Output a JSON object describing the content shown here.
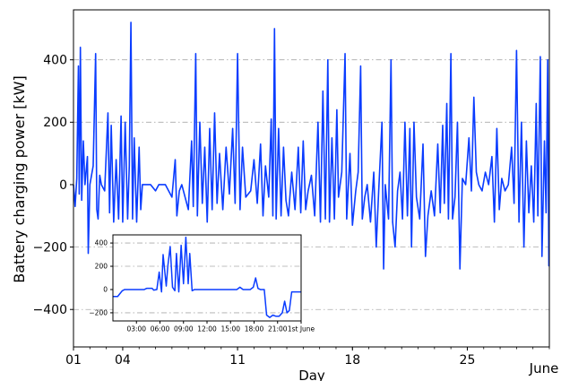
{
  "chart_data": [
    {
      "type": "line",
      "role": "main",
      "title": "",
      "xlabel": "Day",
      "ylabel": "Battery charging power [kW]",
      "xlim": [
        1,
        30
      ],
      "ylim": [
        -520,
        560
      ],
      "x_ticks": [
        {
          "x": 1,
          "label": "01"
        },
        {
          "x": 4,
          "label": "04"
        },
        {
          "x": 11,
          "label": "11"
        },
        {
          "x": 18,
          "label": "18"
        },
        {
          "x": 25,
          "label": "25"
        }
      ],
      "x_tick_label_right": "June",
      "y_ticks": [
        -400,
        -200,
        0,
        200,
        400
      ],
      "y_tick_labels": [
        "−400",
        "−200",
        "0",
        "200",
        "400"
      ],
      "grid": "horizontal dash-dot",
      "series": [
        {
          "color": "#0a3cff",
          "points": [
            [
              1.0,
              0
            ],
            [
              1.1,
              -70
            ],
            [
              1.2,
              20
            ],
            [
              1.3,
              380
            ],
            [
              1.35,
              -30
            ],
            [
              1.42,
              440
            ],
            [
              1.5,
              -50
            ],
            [
              1.6,
              140
            ],
            [
              1.7,
              0
            ],
            [
              1.85,
              90
            ],
            [
              1.9,
              -220
            ],
            [
              2.0,
              0
            ],
            [
              2.2,
              60
            ],
            [
              2.35,
              420
            ],
            [
              2.42,
              -80
            ],
            [
              2.5,
              -110
            ],
            [
              2.6,
              30
            ],
            [
              2.7,
              0
            ],
            [
              2.9,
              -20
            ],
            [
              3.1,
              230
            ],
            [
              3.2,
              -90
            ],
            [
              3.3,
              190
            ],
            [
              3.45,
              -120
            ],
            [
              3.6,
              80
            ],
            [
              3.75,
              -110
            ],
            [
              3.9,
              220
            ],
            [
              4.0,
              -120
            ],
            [
              4.15,
              200
            ],
            [
              4.3,
              -110
            ],
            [
              4.4,
              60
            ],
            [
              4.5,
              520
            ],
            [
              4.6,
              -110
            ],
            [
              4.7,
              150
            ],
            [
              4.85,
              -120
            ],
            [
              5.0,
              120
            ],
            [
              5.1,
              -80
            ],
            [
              5.2,
              0
            ],
            [
              5.7,
              0
            ],
            [
              6.0,
              -20
            ],
            [
              6.2,
              0
            ],
            [
              6.6,
              0
            ],
            [
              7.0,
              -40
            ],
            [
              7.2,
              80
            ],
            [
              7.3,
              -100
            ],
            [
              7.45,
              -20
            ],
            [
              7.6,
              0
            ],
            [
              8.0,
              -80
            ],
            [
              8.2,
              140
            ],
            [
              8.3,
              -70
            ],
            [
              8.45,
              420
            ],
            [
              8.55,
              -100
            ],
            [
              8.7,
              200
            ],
            [
              8.85,
              -60
            ],
            [
              9.0,
              120
            ],
            [
              9.15,
              -120
            ],
            [
              9.3,
              180
            ],
            [
              9.45,
              -80
            ],
            [
              9.6,
              230
            ],
            [
              9.75,
              -60
            ],
            [
              9.9,
              100
            ],
            [
              10.1,
              -80
            ],
            [
              10.3,
              120
            ],
            [
              10.5,
              -30
            ],
            [
              10.7,
              180
            ],
            [
              10.85,
              -60
            ],
            [
              11.0,
              420
            ],
            [
              11.15,
              -80
            ],
            [
              11.3,
              120
            ],
            [
              11.5,
              -40
            ],
            [
              11.8,
              -20
            ],
            [
              12.0,
              80
            ],
            [
              12.2,
              -60
            ],
            [
              12.4,
              130
            ],
            [
              12.55,
              -100
            ],
            [
              12.7,
              60
            ],
            [
              12.9,
              -40
            ],
            [
              13.05,
              210
            ],
            [
              13.15,
              -100
            ],
            [
              13.25,
              500
            ],
            [
              13.35,
              -110
            ],
            [
              13.5,
              180
            ],
            [
              13.65,
              -100
            ],
            [
              13.8,
              120
            ],
            [
              13.95,
              -50
            ],
            [
              14.1,
              -100
            ],
            [
              14.3,
              40
            ],
            [
              14.5,
              -80
            ],
            [
              14.7,
              120
            ],
            [
              14.85,
              -90
            ],
            [
              15.0,
              140
            ],
            [
              15.15,
              -80
            ],
            [
              15.3,
              -20
            ],
            [
              15.5,
              30
            ],
            [
              15.7,
              -100
            ],
            [
              15.9,
              200
            ],
            [
              16.05,
              -120
            ],
            [
              16.2,
              300
            ],
            [
              16.35,
              -110
            ],
            [
              16.5,
              400
            ],
            [
              16.6,
              -120
            ],
            [
              16.75,
              150
            ],
            [
              16.9,
              -110
            ],
            [
              17.05,
              240
            ],
            [
              17.15,
              -40
            ],
            [
              17.35,
              40
            ],
            [
              17.55,
              420
            ],
            [
              17.65,
              -110
            ],
            [
              17.85,
              100
            ],
            [
              18.0,
              -130
            ],
            [
              18.2,
              -20
            ],
            [
              18.35,
              40
            ],
            [
              18.5,
              380
            ],
            [
              18.6,
              -110
            ],
            [
              18.75,
              -40
            ],
            [
              18.9,
              0
            ],
            [
              19.1,
              -120
            ],
            [
              19.3,
              40
            ],
            [
              19.45,
              -200
            ],
            [
              19.6,
              -20
            ],
            [
              19.8,
              200
            ],
            [
              19.9,
              -270
            ],
            [
              20.0,
              0
            ],
            [
              20.2,
              -110
            ],
            [
              20.35,
              400
            ],
            [
              20.45,
              -120
            ],
            [
              20.6,
              -200
            ],
            [
              20.75,
              -20
            ],
            [
              20.9,
              40
            ],
            [
              21.05,
              -110
            ],
            [
              21.2,
              200
            ],
            [
              21.35,
              -100
            ],
            [
              21.5,
              180
            ],
            [
              21.6,
              -200
            ],
            [
              21.75,
              200
            ],
            [
              21.9,
              -40
            ],
            [
              22.1,
              -110
            ],
            [
              22.3,
              130
            ],
            [
              22.45,
              -230
            ],
            [
              22.6,
              -100
            ],
            [
              22.8,
              -20
            ],
            [
              23.0,
              -100
            ],
            [
              23.2,
              130
            ],
            [
              23.35,
              -90
            ],
            [
              23.5,
              190
            ],
            [
              23.6,
              -60
            ],
            [
              23.75,
              260
            ],
            [
              23.85,
              -110
            ],
            [
              24.0,
              420
            ],
            [
              24.1,
              -110
            ],
            [
              24.25,
              -40
            ],
            [
              24.4,
              200
            ],
            [
              24.55,
              -270
            ],
            [
              24.7,
              20
            ],
            [
              24.9,
              0
            ],
            [
              25.1,
              150
            ],
            [
              25.25,
              -20
            ],
            [
              25.4,
              280
            ],
            [
              25.55,
              40
            ],
            [
              25.7,
              0
            ],
            [
              25.9,
              -20
            ],
            [
              26.1,
              40
            ],
            [
              26.3,
              0
            ],
            [
              26.5,
              90
            ],
            [
              26.65,
              -120
            ],
            [
              26.8,
              180
            ],
            [
              26.95,
              -80
            ],
            [
              27.1,
              20
            ],
            [
              27.3,
              -20
            ],
            [
              27.5,
              0
            ],
            [
              27.7,
              120
            ],
            [
              27.85,
              -60
            ],
            [
              28.0,
              430
            ],
            [
              28.15,
              -120
            ],
            [
              28.3,
              200
            ],
            [
              28.45,
              -200
            ],
            [
              28.6,
              140
            ],
            [
              28.75,
              -90
            ],
            [
              28.9,
              60
            ],
            [
              29.05,
              -120
            ],
            [
              29.2,
              260
            ],
            [
              29.3,
              -100
            ],
            [
              29.45,
              410
            ],
            [
              29.55,
              -230
            ],
            [
              29.7,
              140
            ],
            [
              29.8,
              -90
            ],
            [
              29.9,
              400
            ],
            [
              29.97,
              -260
            ],
            [
              30.0,
              -260
            ]
          ]
        }
      ]
    },
    {
      "type": "line",
      "role": "inset",
      "title": "",
      "xlabel": "",
      "ylabel": "",
      "xlim": [
        0,
        24
      ],
      "ylim": [
        -270,
        470
      ],
      "x_ticks": [
        {
          "x": 3,
          "label": "03:00"
        },
        {
          "x": 6,
          "label": "06:00"
        },
        {
          "x": 9,
          "label": "09:00"
        },
        {
          "x": 12,
          "label": "12:00"
        },
        {
          "x": 15,
          "label": "15:00"
        },
        {
          "x": 18,
          "label": "18:00"
        },
        {
          "x": 21,
          "label": "21:00"
        },
        {
          "x": 24,
          "label": "1st June"
        }
      ],
      "y_ticks": [
        -200,
        0,
        200,
        400
      ],
      "y_tick_labels": [
        "−200",
        "0",
        "200",
        "400"
      ],
      "grid": "horizontal dash-dot",
      "series": [
        {
          "color": "#0a3cff",
          "points": [
            [
              0.0,
              -60
            ],
            [
              0.6,
              -60
            ],
            [
              1.2,
              -10
            ],
            [
              1.5,
              0
            ],
            [
              2.5,
              0
            ],
            [
              4.0,
              0
            ],
            [
              4.3,
              10
            ],
            [
              5.0,
              10
            ],
            [
              5.2,
              -5
            ],
            [
              5.6,
              0
            ],
            [
              5.9,
              150
            ],
            [
              6.2,
              -20
            ],
            [
              6.4,
              300
            ],
            [
              6.8,
              30
            ],
            [
              7.0,
              200
            ],
            [
              7.3,
              370
            ],
            [
              7.6,
              20
            ],
            [
              7.9,
              -10
            ],
            [
              8.1,
              310
            ],
            [
              8.4,
              -20
            ],
            [
              8.7,
              380
            ],
            [
              9.0,
              50
            ],
            [
              9.3,
              450
            ],
            [
              9.6,
              50
            ],
            [
              9.8,
              310
            ],
            [
              10.1,
              -10
            ],
            [
              10.4,
              0
            ],
            [
              11.0,
              0
            ],
            [
              14.0,
              0
            ],
            [
              15.8,
              0
            ],
            [
              16.2,
              20
            ],
            [
              16.6,
              0
            ],
            [
              17.5,
              0
            ],
            [
              17.9,
              20
            ],
            [
              18.2,
              100
            ],
            [
              18.5,
              10
            ],
            [
              18.8,
              0
            ],
            [
              19.3,
              0
            ],
            [
              19.6,
              -220
            ],
            [
              20.0,
              -240
            ],
            [
              20.4,
              -220
            ],
            [
              20.8,
              -230
            ],
            [
              21.2,
              -230
            ],
            [
              21.6,
              -200
            ],
            [
              21.9,
              -100
            ],
            [
              22.2,
              -200
            ],
            [
              22.5,
              -180
            ],
            [
              22.8,
              -20
            ],
            [
              23.0,
              -20
            ],
            [
              24.0,
              -20
            ]
          ]
        }
      ]
    }
  ]
}
